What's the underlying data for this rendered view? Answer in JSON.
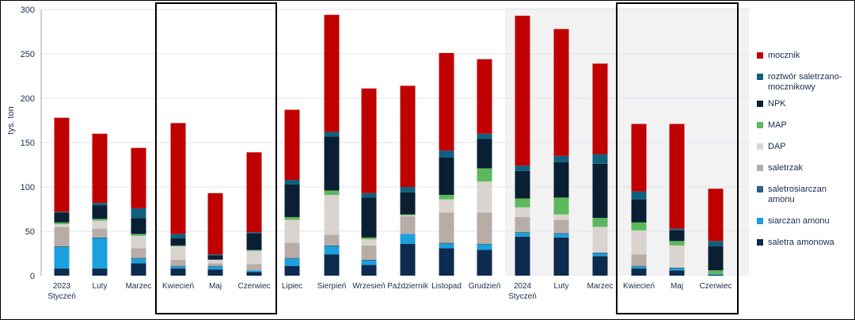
{
  "chart_data": {
    "type": "bar",
    "stacked": true,
    "ylabel": "tys. ton",
    "ylim": [
      0,
      300
    ],
    "yticks": [
      "0",
      "50",
      "100",
      "150",
      "200",
      "250",
      "300"
    ],
    "grid": true,
    "legend_position": "right",
    "highlighted_groups": [
      {
        "months": [
          "Kwiecień",
          "Maj",
          "Czerwiec"
        ],
        "year": "2023"
      },
      {
        "months": [
          "Kwiecień",
          "Maj",
          "Czerwiec"
        ],
        "year": "2024"
      }
    ],
    "categories": [
      {
        "label": "Styczeń",
        "year": "2023"
      },
      {
        "label": "Luty"
      },
      {
        "label": "Marzec"
      },
      {
        "label": "Kwiecień"
      },
      {
        "label": "Maj"
      },
      {
        "label": "Czerwiec"
      },
      {
        "label": "Lipiec"
      },
      {
        "label": "Sierpień"
      },
      {
        "label": "Wrzesień"
      },
      {
        "label": "Październik"
      },
      {
        "label": "Listopad"
      },
      {
        "label": "Grudzień"
      },
      {
        "label": "Styczeń",
        "year": "2024"
      },
      {
        "label": "Luty"
      },
      {
        "label": "Marzec"
      },
      {
        "label": "Kwiecień"
      },
      {
        "label": "Maj"
      },
      {
        "label": "Czerwiec"
      }
    ],
    "series": [
      {
        "name": "saletra amonowa",
        "color": "#0d2b4e",
        "values": [
          8,
          8,
          14,
          8,
          7,
          4,
          11,
          24,
          12,
          36,
          31,
          29,
          44,
          43,
          22,
          8,
          6,
          1
        ]
      },
      {
        "name": "siarczan amonu",
        "color": "#1aa0dc",
        "values": [
          24,
          34,
          5,
          2,
          3,
          2,
          8,
          9,
          5,
          11,
          5,
          6,
          4,
          4,
          3,
          2,
          2,
          1
        ]
      },
      {
        "name": "saletrosiarczan amonu",
        "color": "#2f5f8a",
        "values": [
          1,
          1,
          1,
          1,
          1,
          0,
          1,
          1,
          1,
          0,
          1,
          1,
          1,
          1,
          1,
          1,
          1,
          0
        ]
      },
      {
        "name": "saletrzak",
        "color": "#b8ada6",
        "values": [
          22,
          10,
          11,
          7,
          3,
          7,
          17,
          12,
          16,
          20,
          34,
          35,
          17,
          15,
          0,
          13,
          0,
          0
        ]
      },
      {
        "name": "DAP",
        "color": "#d9d4cf",
        "values": [
          3,
          9,
          14,
          15,
          4,
          15,
          26,
          45,
          7,
          1,
          15,
          35,
          11,
          6,
          29,
          27,
          25,
          0
        ]
      },
      {
        "name": "MAP",
        "color": "#5cb85c",
        "values": [
          2,
          2,
          2,
          1,
          0,
          1,
          3,
          5,
          2,
          1,
          5,
          15,
          10,
          19,
          10,
          9,
          5,
          4
        ]
      },
      {
        "name": "NPK",
        "color": "#0b1f33",
        "values": [
          11,
          15,
          18,
          8,
          5,
          19,
          37,
          61,
          45,
          25,
          42,
          33,
          31,
          40,
          61,
          26,
          12,
          27
        ]
      },
      {
        "name": "roztwór saletrzano-mocznikowy",
        "color": "#10607e",
        "values": [
          1,
          3,
          11,
          5,
          1,
          1,
          5,
          5,
          5,
          6,
          8,
          6,
          6,
          7,
          11,
          9,
          2,
          6
        ]
      },
      {
        "name": "mocznik",
        "color": "#c00000",
        "values": [
          106,
          78,
          68,
          125,
          69,
          90,
          79,
          132,
          118,
          114,
          110,
          84,
          169,
          143,
          102,
          76,
          118,
          59
        ]
      }
    ],
    "legend_order": [
      "mocznik",
      "roztwór saletrzano-mocznikowy",
      "NPK",
      "MAP",
      "DAP",
      "saletrzak",
      "saletrosiarczan amonu",
      "siarczan amonu",
      "saletra amonowa"
    ]
  }
}
